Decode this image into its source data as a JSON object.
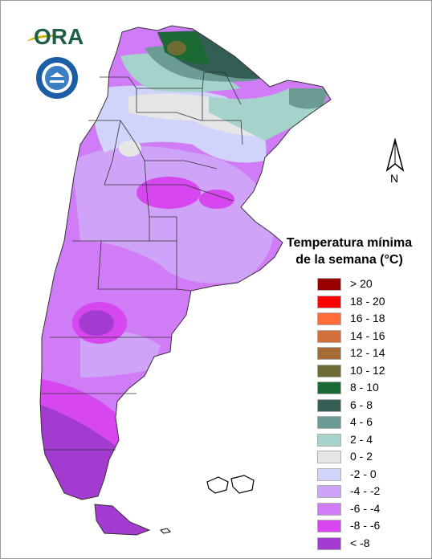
{
  "legend": {
    "title_line1": "Temperatura mínima",
    "title_line2": "de la semana (°C)",
    "items": [
      {
        "label": "> 20",
        "color": "#9b0000"
      },
      {
        "label": "18 - 20",
        "color": "#ff0000"
      },
      {
        "label": "16 - 18",
        "color": "#ff6b3a"
      },
      {
        "label": "14 - 16",
        "color": "#d2703c"
      },
      {
        "label": "12 - 14",
        "color": "#a66b35"
      },
      {
        "label": "10 - 12",
        "color": "#6e6c34"
      },
      {
        "label": "8 - 10",
        "color": "#1c6a33"
      },
      {
        "label": "6 - 8",
        "color": "#335e56"
      },
      {
        "label": "4 - 6",
        "color": "#6c9a94"
      },
      {
        "label": "2 - 4",
        "color": "#a6d2cc"
      },
      {
        "label": "0 - 2",
        "color": "#e6e6e6"
      },
      {
        "label": "-2 - 0",
        "color": "#d0d3fa"
      },
      {
        "label": "-4 - -2",
        "color": "#cfa3f7"
      },
      {
        "label": "-6 - -4",
        "color": "#d17cf7"
      },
      {
        "label": "-8 - -6",
        "color": "#d747f0"
      },
      {
        "label": "< -8",
        "color": "#a43bd1"
      }
    ]
  },
  "compass": {
    "label": "N"
  },
  "logos": {
    "ora": "ORA",
    "smn_icon": "smn-seal-icon"
  }
}
